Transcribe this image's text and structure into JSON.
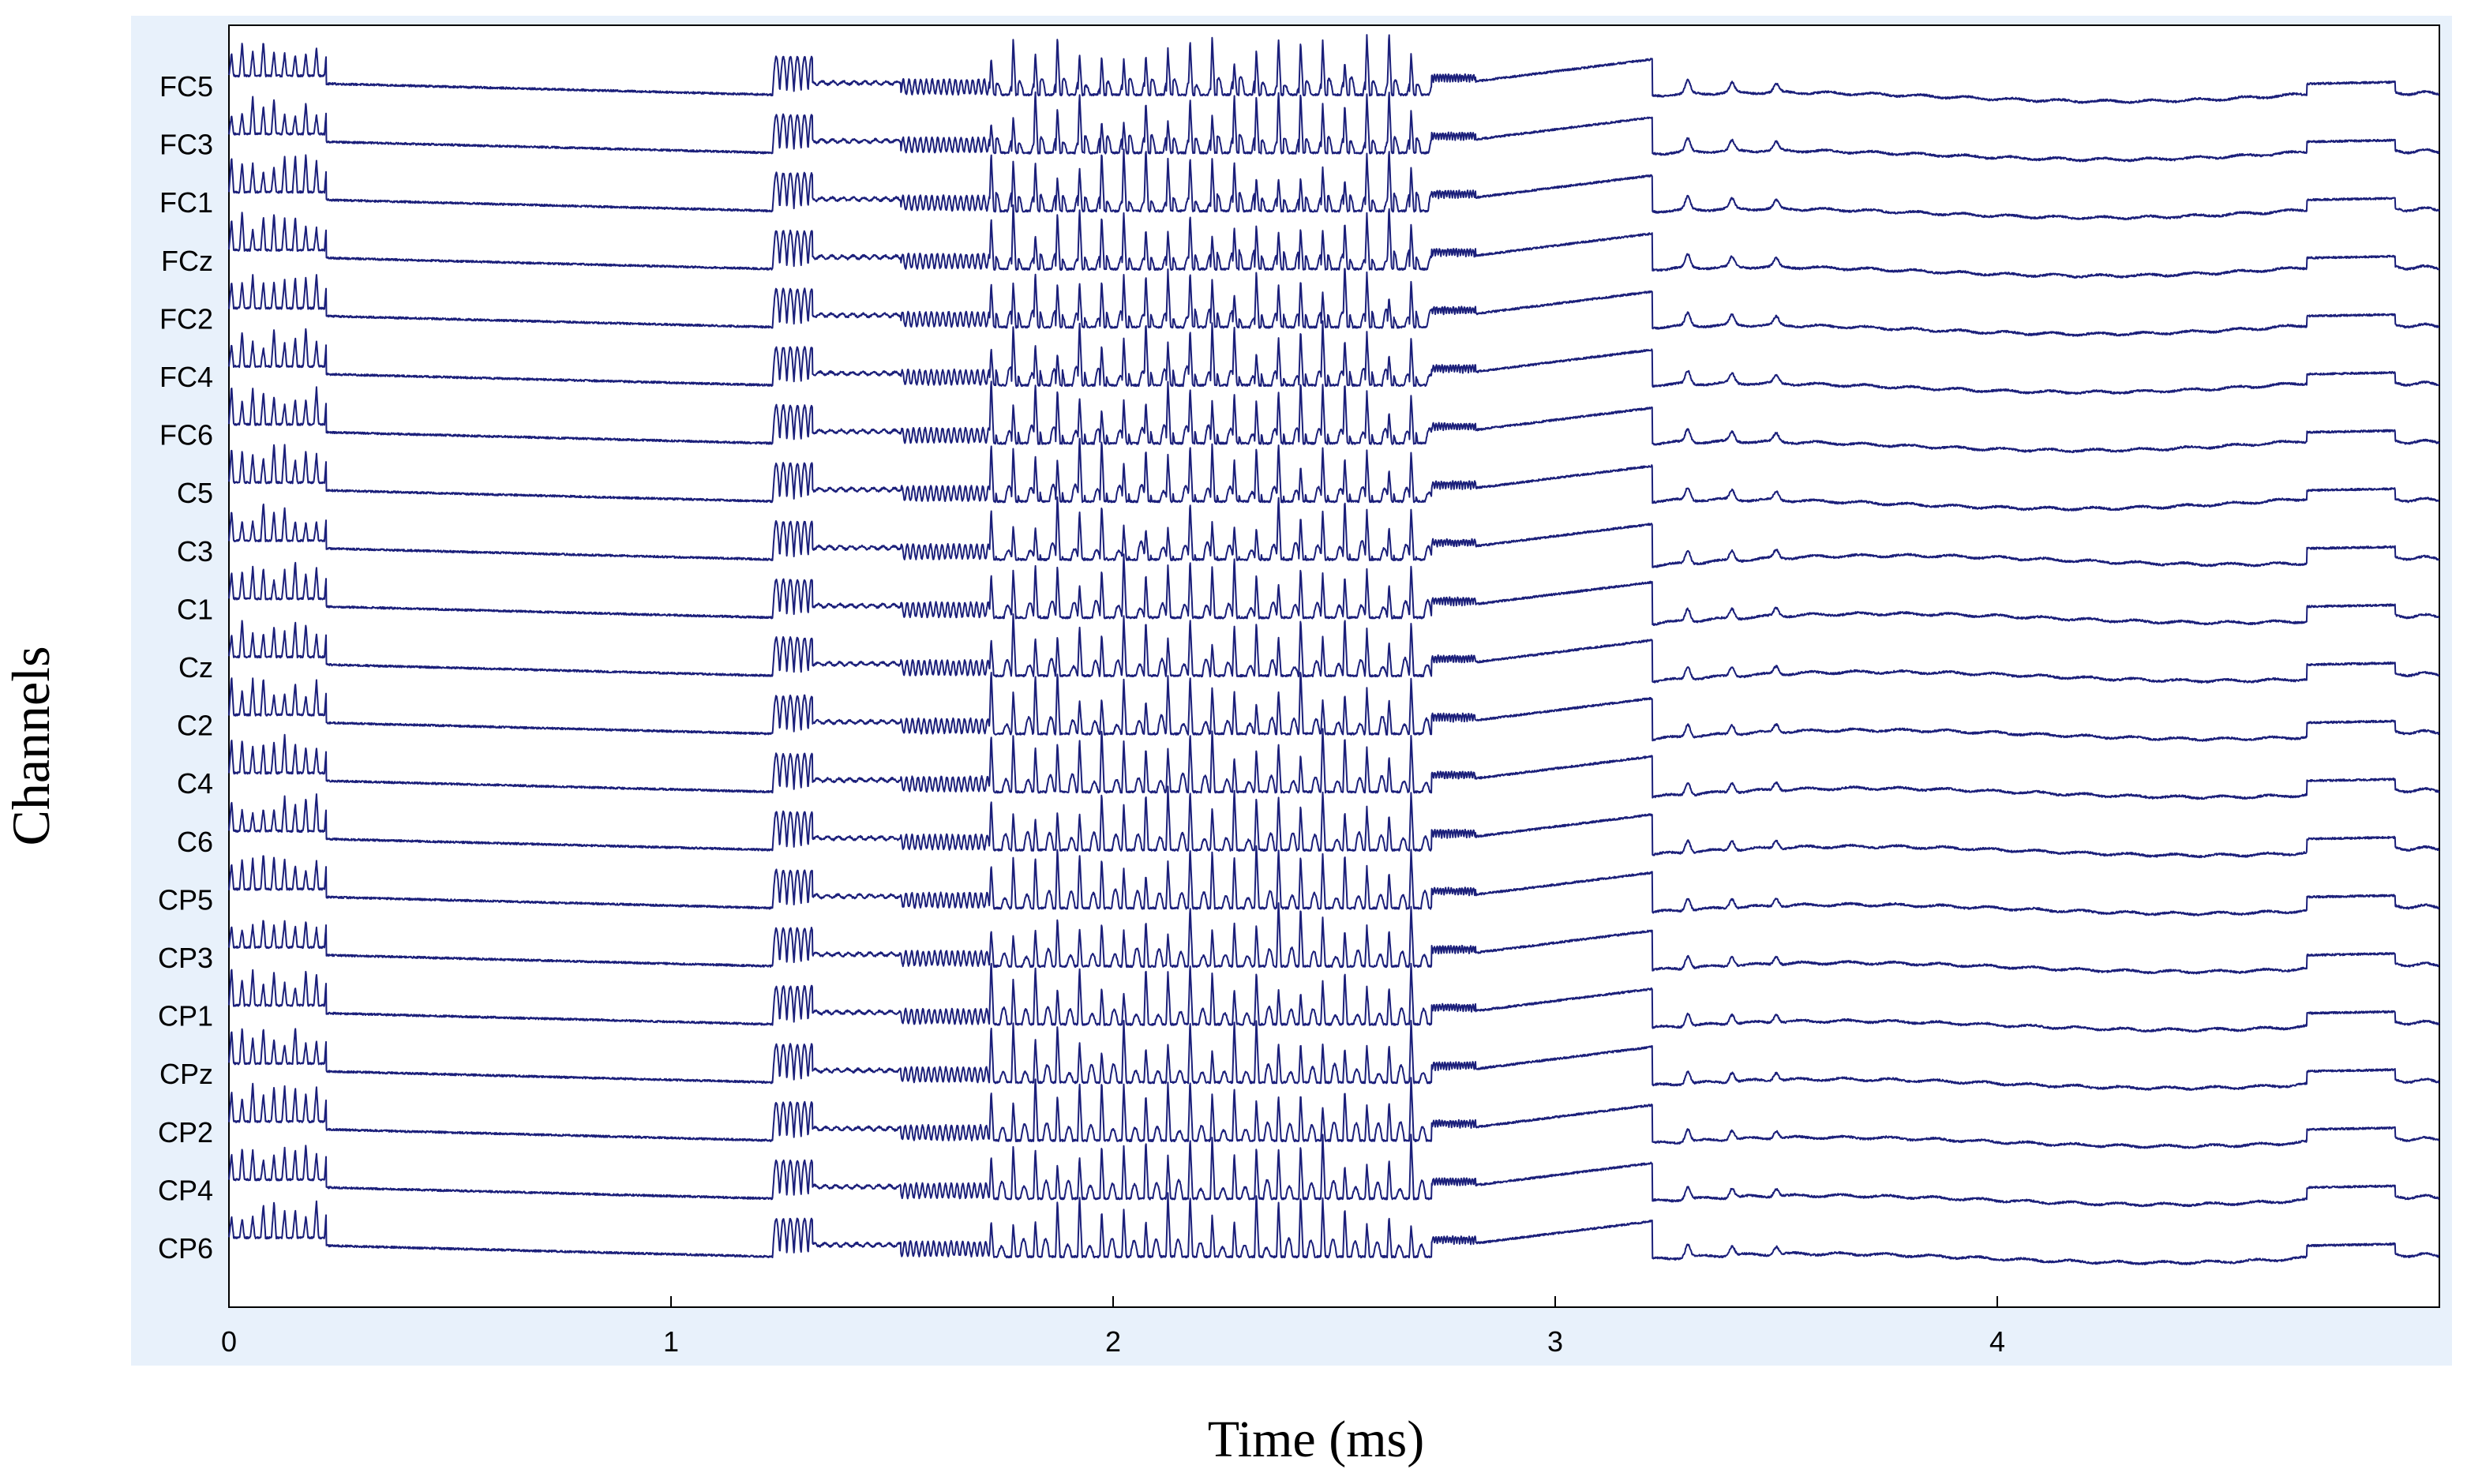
{
  "chart_data": {
    "type": "line",
    "title": "",
    "xlabel": "Time (ms)",
    "ylabel": "Channels",
    "xlim": [
      0,
      5
    ],
    "xticks": [
      "0",
      "1",
      "2",
      "3",
      "4"
    ],
    "grid": false,
    "colors": {
      "trace": "#1b1f7a",
      "panel": "#e8f1fb",
      "axes": "#000000"
    },
    "channels": [
      "FC5",
      "FC3",
      "FC1",
      "FCz",
      "FC2",
      "FC4",
      "FC6",
      "C5",
      "C3",
      "C1",
      "Cz",
      "C2",
      "C4",
      "C6",
      "CP5",
      "CP3",
      "CP1",
      "CPz",
      "CP2",
      "CP4",
      "CP6"
    ],
    "segments": [
      {
        "kind": "spike_train",
        "t_start": 0.0,
        "t_end": 0.22
      },
      {
        "kind": "ramp_down",
        "t_start": 0.22,
        "t_end": 1.23
      },
      {
        "kind": "spike_burst",
        "t_start": 1.23,
        "t_end": 1.32
      },
      {
        "kind": "small_ripple",
        "t_start": 1.32,
        "t_end": 1.52
      },
      {
        "kind": "oscillation",
        "t_start": 1.52,
        "t_end": 1.72
      },
      {
        "kind": "large_spikes",
        "t_start": 1.72,
        "t_end": 2.72
      },
      {
        "kind": "ripple",
        "t_start": 2.72,
        "t_end": 2.82
      },
      {
        "kind": "ramp_up",
        "t_start": 2.82,
        "t_end": 3.22
      },
      {
        "kind": "drop_and_wobble",
        "t_start": 3.22,
        "t_end": 4.7
      },
      {
        "kind": "step_plateau",
        "t_start": 4.7,
        "t_end": 4.9
      },
      {
        "kind": "tail",
        "t_start": 4.9,
        "t_end": 5.0
      }
    ]
  }
}
